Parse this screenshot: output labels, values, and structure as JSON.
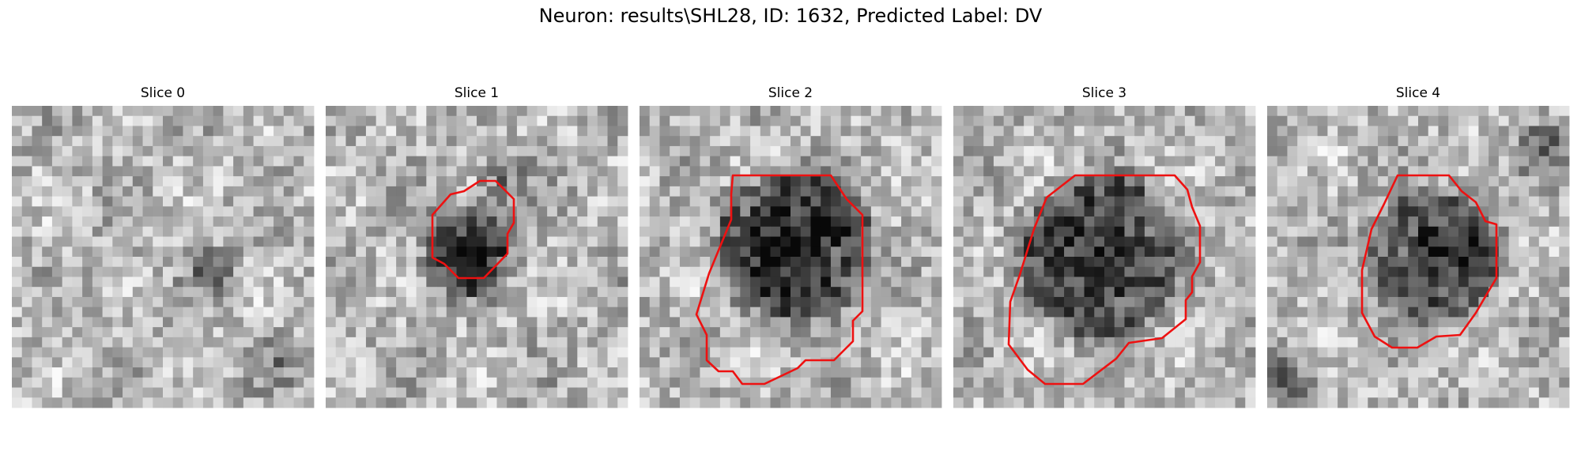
{
  "figure": {
    "title": "Neuron: results\\SHL28, ID: 1632, Predicted Label: DV"
  },
  "panels": [
    {
      "title": "Slice 0",
      "contour": false
    },
    {
      "title": "Slice 1",
      "contour": true
    },
    {
      "title": "Slice 2",
      "contour": true
    },
    {
      "title": "Slice 3",
      "contour": true
    },
    {
      "title": "Slice 4",
      "contour": true
    }
  ],
  "colors": {
    "contour": "#ee1111",
    "background": "#ffffff"
  },
  "colormap": "gray"
}
